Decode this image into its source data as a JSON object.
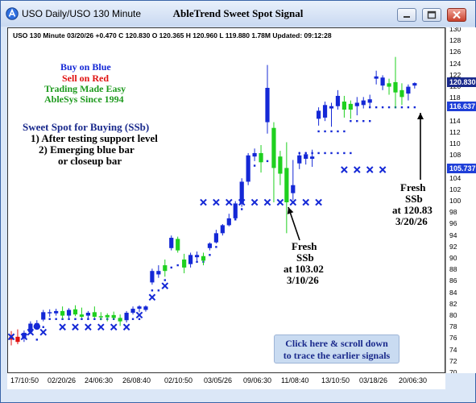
{
  "window": {
    "title_left": "USO  Daily/USO 130 Minute",
    "title_center": "AbleTrend Sweet Spot Signal"
  },
  "info_line": "USO 130 Minute 03/20/26 +0.470 C 120.830 O 120.365 H 120.960 L 119.880 1.78M Updated: 09:12:28",
  "legend": {
    "buy": "Buy on Blue",
    "sell": "Sell on Red",
    "easy": "Trading Made Easy",
    "since": "AbleSys Since 1994"
  },
  "sweet_spot": {
    "title": "Sweet Spot for Buying (SSb)",
    "line1": "1) After testing support level",
    "line2": "2) Emerging blue bar",
    "line3": "or closeup bar"
  },
  "callout1": {
    "l1": "Fresh",
    "l2": "SSb",
    "l3": "at 103.02",
    "l4": "3/10/26"
  },
  "callout2": {
    "l1": "Fresh",
    "l2": "SSb",
    "l3": "at 120.83",
    "l4": "3/20/26"
  },
  "cta": {
    "l1": "Click here & scroll down",
    "l2": "to trace the earlier signals"
  },
  "badges": {
    "last": "120.830",
    "upper": "116.637",
    "lower": "105.737"
  },
  "colors": {
    "up": "#1428d6",
    "down": "#1fd01f",
    "sell": "#e01010",
    "marker": "#1428d6",
    "badge_dark": "#1a2a8c",
    "badge_blue": "#1f3fd8"
  },
  "chart_data": {
    "type": "candlestick",
    "ylim": [
      70,
      130
    ],
    "y_ticks": [
      "130",
      "128",
      "126",
      "124",
      "122",
      "120",
      "118",
      "116",
      "114",
      "112",
      "110",
      "108",
      "106",
      "104",
      "102",
      "100",
      "98",
      "96",
      "94",
      "92",
      "90",
      "88",
      "86",
      "84",
      "82",
      "80",
      "78",
      "76",
      "74",
      "72",
      "70"
    ],
    "x_ticks": [
      "17/10:50",
      "02/20/26",
      "24/06:30",
      "26/08:40",
      "02/10:50",
      "03/05/26",
      "09/06:30",
      "11/08:40",
      "13/10:50",
      "03/18/26",
      "20/06:30"
    ],
    "candles": [
      {
        "o": 76.0,
        "h": 77.5,
        "l": 75.0,
        "c": 76.5,
        "color": "sell"
      },
      {
        "o": 76.5,
        "h": 77.8,
        "l": 75.2,
        "c": 75.6,
        "color": "sell"
      },
      {
        "o": 76.2,
        "h": 77.6,
        "l": 75.6,
        "c": 77.2,
        "color": "up"
      },
      {
        "o": 77.3,
        "h": 79.2,
        "l": 77.0,
        "c": 78.8,
        "color": "up"
      },
      {
        "o": 78.9,
        "h": 79.4,
        "l": 78.0,
        "c": 78.6,
        "color": "up"
      },
      {
        "o": 79.5,
        "h": 81.2,
        "l": 79.2,
        "c": 80.8,
        "color": "up"
      },
      {
        "o": 80.8,
        "h": 81.3,
        "l": 80.0,
        "c": 80.6,
        "color": "up"
      },
      {
        "o": 80.6,
        "h": 81.4,
        "l": 80.2,
        "c": 81.0,
        "color": "up"
      },
      {
        "o": 81.0,
        "h": 81.8,
        "l": 79.6,
        "c": 80.2,
        "color": "down"
      },
      {
        "o": 80.2,
        "h": 81.5,
        "l": 79.8,
        "c": 81.2,
        "color": "up"
      },
      {
        "o": 81.3,
        "h": 82.0,
        "l": 80.1,
        "c": 80.4,
        "color": "down"
      },
      {
        "o": 80.4,
        "h": 81.6,
        "l": 79.8,
        "c": 80.0,
        "color": "down"
      },
      {
        "o": 80.2,
        "h": 81.0,
        "l": 79.6,
        "c": 80.7,
        "color": "up"
      },
      {
        "o": 80.8,
        "h": 81.8,
        "l": 79.8,
        "c": 80.0,
        "color": "down"
      },
      {
        "o": 80.1,
        "h": 80.8,
        "l": 79.4,
        "c": 79.9,
        "color": "down"
      },
      {
        "o": 79.9,
        "h": 80.6,
        "l": 79.2,
        "c": 80.3,
        "color": "down"
      },
      {
        "o": 80.3,
        "h": 80.9,
        "l": 79.5,
        "c": 79.8,
        "color": "down"
      },
      {
        "o": 79.8,
        "h": 80.4,
        "l": 78.4,
        "c": 79.2,
        "color": "down"
      },
      {
        "o": 79.4,
        "h": 81.0,
        "l": 79.0,
        "c": 80.7,
        "color": "up"
      },
      {
        "o": 80.7,
        "h": 81.8,
        "l": 80.4,
        "c": 81.4,
        "color": "up"
      },
      {
        "o": 81.4,
        "h": 82.0,
        "l": 80.8,
        "c": 81.8,
        "color": "up"
      },
      {
        "o": 81.8,
        "h": 82.0,
        "l": 80.9,
        "c": 81.2,
        "color": "up"
      },
      {
        "o": 86.0,
        "h": 88.4,
        "l": 85.6,
        "c": 88.0,
        "color": "up"
      },
      {
        "o": 88.0,
        "h": 89.0,
        "l": 86.8,
        "c": 87.4,
        "color": "up"
      },
      {
        "o": 88.0,
        "h": 90.0,
        "l": 87.0,
        "c": 89.0,
        "color": "down"
      },
      {
        "o": 92.0,
        "h": 94.2,
        "l": 91.6,
        "c": 93.8,
        "color": "up"
      },
      {
        "o": 93.6,
        "h": 94.0,
        "l": 91.2,
        "c": 91.6,
        "color": "down"
      },
      {
        "o": 90.0,
        "h": 91.0,
        "l": 87.6,
        "c": 88.6,
        "color": "down"
      },
      {
        "o": 89.2,
        "h": 91.2,
        "l": 88.6,
        "c": 90.8,
        "color": "up"
      },
      {
        "o": 90.8,
        "h": 91.4,
        "l": 89.8,
        "c": 90.4,
        "color": "up"
      },
      {
        "o": 90.6,
        "h": 91.2,
        "l": 89.0,
        "c": 89.8,
        "color": "down"
      },
      {
        "o": 92.0,
        "h": 93.0,
        "l": 91.6,
        "c": 92.8,
        "color": "up"
      },
      {
        "o": 93.0,
        "h": 95.2,
        "l": 92.8,
        "c": 94.6,
        "color": "up"
      },
      {
        "o": 94.6,
        "h": 96.2,
        "l": 94.2,
        "c": 96.0,
        "color": "up"
      },
      {
        "o": 96.0,
        "h": 98.0,
        "l": 95.8,
        "c": 97.2,
        "color": "up"
      },
      {
        "o": 97.2,
        "h": 100.2,
        "l": 97.0,
        "c": 99.8,
        "color": "up"
      },
      {
        "o": 99.8,
        "h": 104.2,
        "l": 99.2,
        "c": 103.6,
        "color": "up"
      },
      {
        "o": 103.6,
        "h": 108.6,
        "l": 103.0,
        "c": 108.2,
        "color": "up"
      },
      {
        "o": 108.0,
        "h": 109.4,
        "l": 107.2,
        "c": 108.6,
        "color": "up"
      },
      {
        "o": 108.6,
        "h": 110.0,
        "l": 105.2,
        "c": 107.0,
        "color": "down"
      },
      {
        "o": 114.0,
        "h": 124.0,
        "l": 112.0,
        "c": 120.0,
        "color": "up"
      },
      {
        "o": 113.0,
        "h": 114.0,
        "l": 100.0,
        "c": 106.0,
        "color": "down"
      },
      {
        "o": 108.0,
        "h": 109.0,
        "l": 103.0,
        "c": 105.0,
        "color": "down"
      },
      {
        "o": 100.0,
        "h": 110.5,
        "l": 94.6,
        "c": 106.0,
        "color": "down"
      },
      {
        "o": 101.6,
        "h": 107.4,
        "l": 100.4,
        "c": 103.0,
        "color": "up"
      },
      {
        "o": 106.8,
        "h": 108.8,
        "l": 105.8,
        "c": 108.2,
        "color": "up"
      },
      {
        "o": 107.6,
        "h": 108.8,
        "l": 106.6,
        "c": 108.4,
        "color": "up"
      },
      {
        "o": 107.6,
        "h": 109.2,
        "l": 106.2,
        "c": 108.0,
        "color": "up"
      },
      {
        "o": 114.6,
        "h": 116.6,
        "l": 113.4,
        "c": 116.0,
        "color": "up"
      },
      {
        "o": 114.8,
        "h": 117.6,
        "l": 114.2,
        "c": 117.0,
        "color": "up"
      },
      {
        "o": 116.4,
        "h": 117.4,
        "l": 113.2,
        "c": 116.8,
        "color": "up"
      },
      {
        "o": 116.8,
        "h": 119.6,
        "l": 116.2,
        "c": 118.6,
        "color": "up"
      },
      {
        "o": 117.6,
        "h": 118.6,
        "l": 114.8,
        "c": 116.2,
        "color": "down"
      },
      {
        "o": 116.2,
        "h": 117.8,
        "l": 114.6,
        "c": 117.2,
        "color": "down"
      },
      {
        "o": 116.8,
        "h": 118.4,
        "l": 115.2,
        "c": 117.4,
        "color": "up"
      },
      {
        "o": 117.0,
        "h": 118.4,
        "l": 116.4,
        "c": 117.8,
        "color": "up"
      },
      {
        "o": 118.0,
        "h": 118.8,
        "l": 116.6,
        "c": 117.4,
        "color": "up"
      },
      {
        "o": 121.6,
        "h": 123.0,
        "l": 120.6,
        "c": 122.0,
        "color": "up"
      },
      {
        "o": 121.8,
        "h": 122.2,
        "l": 119.6,
        "c": 120.4,
        "color": "up"
      },
      {
        "o": 120.2,
        "h": 121.6,
        "l": 118.8,
        "c": 120.8,
        "color": "down"
      },
      {
        "o": 121.0,
        "h": 125.4,
        "l": 116.4,
        "c": 119.2,
        "color": "down"
      },
      {
        "o": 119.6,
        "h": 120.8,
        "l": 117.0,
        "c": 118.4,
        "color": "down"
      },
      {
        "o": 119.0,
        "h": 120.6,
        "l": 117.8,
        "c": 120.2,
        "color": "up"
      },
      {
        "o": 120.4,
        "h": 120.96,
        "l": 119.88,
        "c": 120.83,
        "color": "up"
      }
    ],
    "support_dots": [
      [
        4,
        76
      ],
      [
        5,
        78.2
      ],
      [
        6,
        79.6
      ],
      [
        7,
        79.6
      ],
      [
        8,
        79.6
      ],
      [
        9,
        79.6
      ],
      [
        10,
        79.6
      ],
      [
        11,
        79.6
      ],
      [
        12,
        79.6
      ],
      [
        13,
        79.6
      ],
      [
        14,
        79.6
      ],
      [
        15,
        79.6
      ],
      [
        16,
        79.6
      ],
      [
        17,
        79.6
      ],
      [
        18,
        79.6
      ],
      [
        19,
        79.6
      ],
      [
        20,
        79.6
      ],
      [
        22,
        84.6
      ],
      [
        23,
        84.6
      ],
      [
        24,
        86.4
      ],
      [
        25,
        88.6
      ],
      [
        26,
        89.0
      ],
      [
        27,
        89.0
      ],
      [
        28,
        89.6
      ],
      [
        29,
        89.6
      ],
      [
        30,
        89.6
      ],
      [
        31,
        90.8
      ],
      [
        32,
        92.2
      ],
      [
        33,
        95.2
      ],
      [
        34,
        97.0
      ],
      [
        35,
        97.0
      ],
      [
        36,
        98.8
      ],
      [
        37,
        104.0
      ],
      [
        38,
        106.4
      ],
      [
        39,
        107.2
      ],
      [
        40,
        107.2
      ],
      [
        41,
        107.2
      ],
      [
        45,
        108.6
      ],
      [
        46,
        108.6
      ],
      [
        47,
        108.6
      ],
      [
        48,
        108.6
      ],
      [
        49,
        108.6
      ],
      [
        50,
        108.6
      ],
      [
        51,
        108.6
      ],
      [
        52,
        108.6
      ],
      [
        53,
        108.6
      ],
      [
        48,
        112.4
      ],
      [
        49,
        112.4
      ],
      [
        50,
        112.4
      ],
      [
        51,
        112.4
      ],
      [
        52,
        112.4
      ],
      [
        53,
        114.2
      ],
      [
        54,
        114.2
      ],
      [
        55,
        114.2
      ],
      [
        56,
        114.2
      ],
      [
        56,
        116.6
      ],
      [
        57,
        116.6
      ],
      [
        58,
        116.6
      ],
      [
        59,
        116.6
      ],
      [
        60,
        116.6
      ],
      [
        61,
        116.6
      ],
      [
        62,
        116.6
      ],
      [
        63,
        116.6
      ]
    ],
    "x_markers": [
      [
        0,
        76.5
      ],
      [
        2,
        76.5
      ],
      [
        3,
        77.3
      ],
      [
        5,
        77.3
      ],
      [
        8,
        78.2
      ],
      [
        10,
        78.2
      ],
      [
        12,
        78.2
      ],
      [
        14,
        78.2
      ],
      [
        16,
        78.2
      ],
      [
        18,
        78.2
      ],
      [
        20,
        80.3
      ],
      [
        22,
        83.4
      ],
      [
        24,
        85.4
      ],
      [
        30,
        100
      ],
      [
        32,
        100
      ],
      [
        34,
        100
      ],
      [
        36,
        100
      ],
      [
        38,
        100
      ],
      [
        40,
        100
      ],
      [
        42,
        100
      ],
      [
        44,
        100
      ],
      [
        46,
        100
      ],
      [
        48,
        100
      ],
      [
        52,
        105.7
      ],
      [
        54,
        105.7
      ],
      [
        56,
        105.7
      ],
      [
        58,
        105.7
      ]
    ]
  }
}
